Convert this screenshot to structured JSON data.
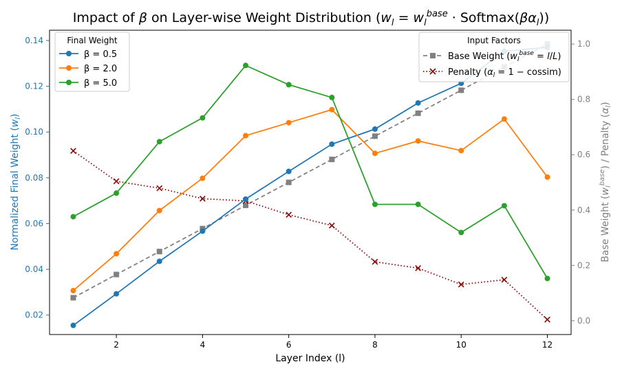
{
  "chart_data": {
    "type": "line",
    "title": "Impact of β on Layer-wise Weight Distribution (w_l = w_l^base · Softmax(βα_l))",
    "xlabel": "Layer Index (l)",
    "ylabel_left": "Normalized Final Weight (w_l)",
    "ylabel_right": "Base Weight (w_l^base) / Penalty (α_l)",
    "x": [
      1,
      2,
      3,
      4,
      5,
      6,
      7,
      8,
      9,
      10,
      11,
      12
    ],
    "x_ticks": [
      2,
      4,
      6,
      8,
      10,
      12
    ],
    "xlim": [
      0.45,
      12.55
    ],
    "ylim_left": [
      0.0115,
      0.1445
    ],
    "ylim_right": [
      -0.05,
      1.05
    ],
    "y_ticks_left": [
      0.02,
      0.04,
      0.06,
      0.08,
      0.1,
      0.12,
      0.14
    ],
    "y_ticks_left_labels": [
      "0.02",
      "0.04",
      "0.06",
      "0.08",
      "0.10",
      "0.12",
      "0.14"
    ],
    "y_ticks_right": [
      0.0,
      0.2,
      0.4,
      0.6,
      0.8,
      1.0
    ],
    "y_ticks_right_labels": [
      "0.0",
      "0.2",
      "0.4",
      "0.6",
      "0.8",
      "1.0"
    ],
    "grid": false,
    "series_left": [
      {
        "name": "β = 0.5",
        "color": "#1f77b4",
        "marker": "circle",
        "values": [
          0.0155,
          0.0293,
          0.0435,
          0.0567,
          0.0707,
          0.0828,
          0.0947,
          0.1013,
          0.1127,
          0.1213,
          0.1353,
          0.137
        ]
      },
      {
        "name": "β = 2.0",
        "color": "#ff7f0e",
        "marker": "circle",
        "values": [
          0.0307,
          0.0468,
          0.0657,
          0.0798,
          0.0984,
          0.1041,
          0.1098,
          0.0907,
          0.0961,
          0.0919,
          0.1057,
          0.0803
        ]
      },
      {
        "name": "β = 5.0",
        "color": "#2ca02c",
        "marker": "circle",
        "values": [
          0.063,
          0.0733,
          0.0958,
          0.1062,
          0.1291,
          0.1207,
          0.1151,
          0.0684,
          0.0684,
          0.0561,
          0.0678,
          0.036
        ]
      }
    ],
    "series_right": [
      {
        "name": "Base Weight (w_l^base = l/L)",
        "color": "#808080",
        "marker": "square",
        "dash": "6,4",
        "values": [
          0.083,
          0.167,
          0.25,
          0.333,
          0.417,
          0.5,
          0.583,
          0.667,
          0.75,
          0.833,
          0.917,
          1.0
        ]
      },
      {
        "name": "Penalty (α_l = 1 − cossim)",
        "color": "#8b0000",
        "marker": "x",
        "dash": "1.5,3",
        "values": [
          0.614,
          0.504,
          0.479,
          0.441,
          0.433,
          0.383,
          0.344,
          0.213,
          0.19,
          0.131,
          0.148,
          0.004
        ]
      }
    ],
    "legend_left": {
      "title": "Final Weight",
      "placement": "top-left"
    },
    "legend_right": {
      "title": "Input Factors",
      "placement": "top-right"
    },
    "colors": {
      "left_axis": "#1f77b4",
      "right_axis": "#808080"
    }
  }
}
